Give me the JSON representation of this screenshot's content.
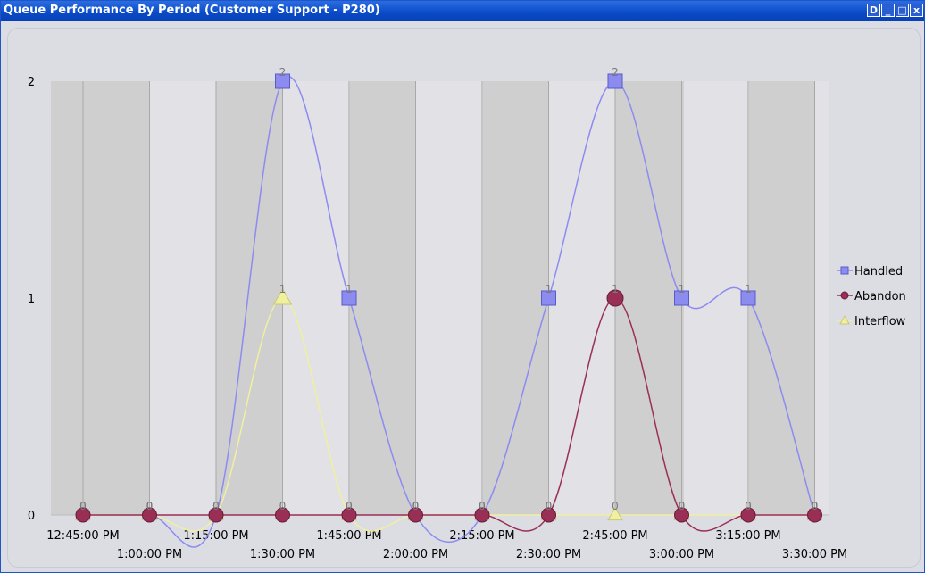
{
  "window": {
    "title": "Queue Performance By Period (Customer Support - P280)",
    "buttons": [
      "D",
      "_",
      "□",
      "x"
    ]
  },
  "chart_data": {
    "type": "line",
    "x": [
      "12:45:00 PM",
      "1:00:00 PM",
      "1:15:00 PM",
      "1:30:00 PM",
      "1:45:00 PM",
      "2:00:00 PM",
      "2:15:00 PM",
      "2:30:00 PM",
      "2:45:00 PM",
      "3:00:00 PM",
      "3:15:00 PM",
      "3:30:00 PM"
    ],
    "yticks": [
      "0",
      "1",
      "2"
    ],
    "ylim": [
      0,
      2
    ],
    "series": [
      {
        "name": "Handled",
        "values": [
          0,
          0,
          0,
          2,
          1,
          0,
          0,
          1,
          2,
          1,
          1,
          0
        ],
        "color": "#8c8cf0",
        "marker": "square"
      },
      {
        "name": "Abandon",
        "values": [
          0,
          0,
          0,
          0,
          0,
          0,
          0,
          0,
          1,
          0,
          0,
          0
        ],
        "color": "#9a2f55",
        "marker": "circle"
      },
      {
        "name": "Interflow",
        "values": [
          0,
          0,
          0,
          1,
          0,
          0,
          0,
          0,
          0,
          0,
          0,
          0
        ],
        "color": "#f0f0a0",
        "marker": "triangle"
      }
    ],
    "legend_position": "right",
    "grid": true
  }
}
